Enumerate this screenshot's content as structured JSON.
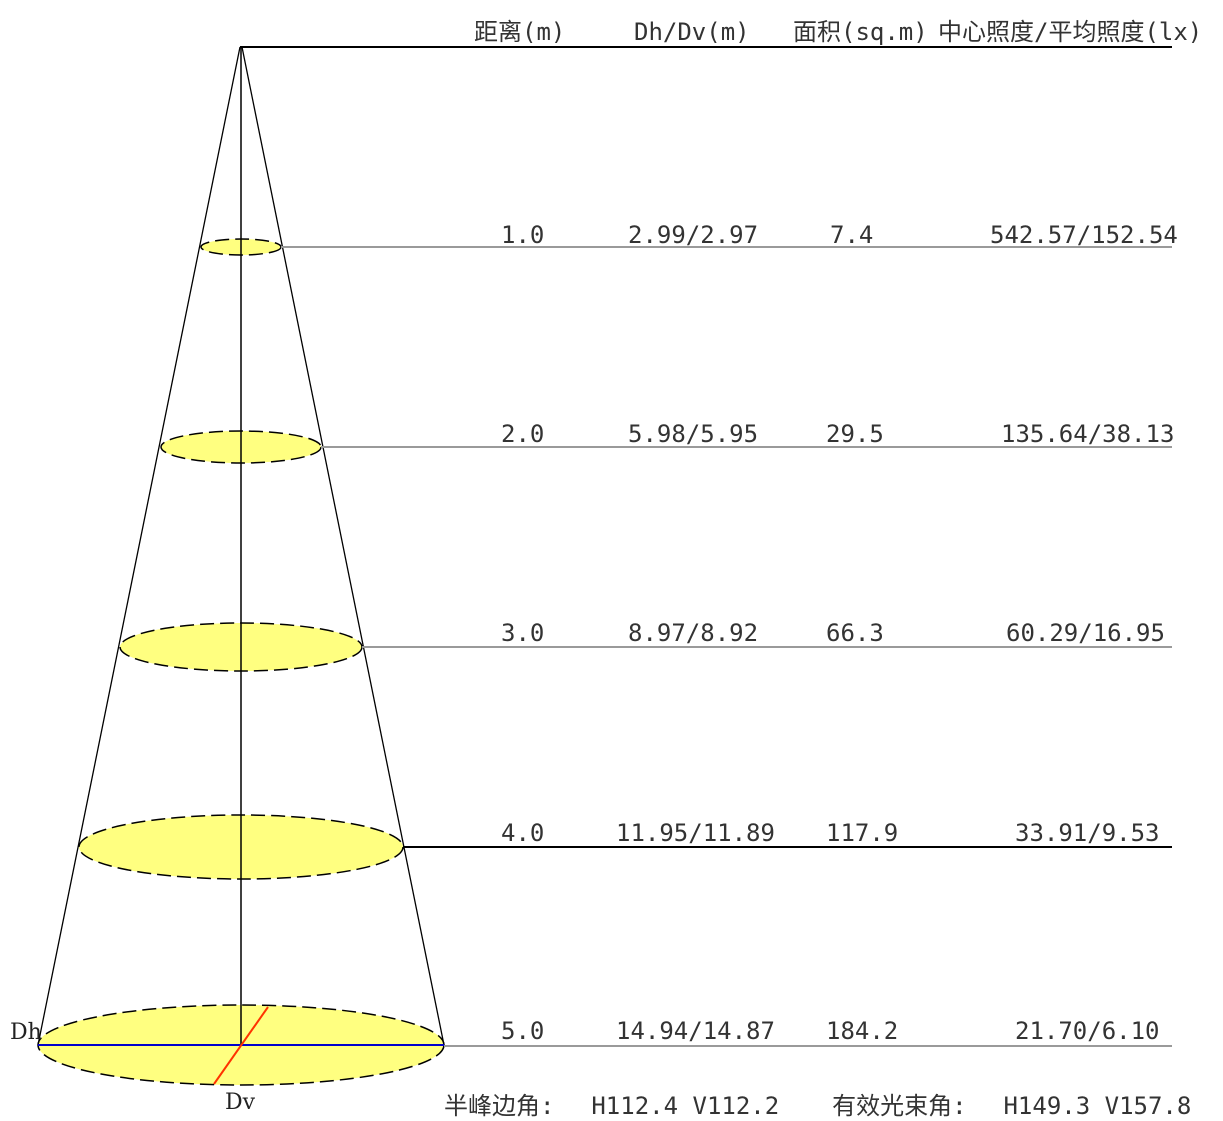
{
  "headers": {
    "distance": "距离(m)",
    "diameter": "Dh/Dv(m)",
    "area": "面积(sq.m)",
    "illuminance": "中心照度/平均照度(lx)"
  },
  "rows": [
    {
      "distance": "1.0",
      "diameter": "2.99/2.97",
      "area": "7.4",
      "illuminance": "542.57/152.54"
    },
    {
      "distance": "2.0",
      "diameter": "5.98/5.95",
      "area": "29.5",
      "illuminance": "135.64/38.13"
    },
    {
      "distance": "3.0",
      "diameter": "8.97/8.92",
      "area": "66.3",
      "illuminance": "60.29/16.95"
    },
    {
      "distance": "4.0",
      "diameter": "11.95/11.89",
      "area": "117.9",
      "illuminance": "33.91/9.53"
    },
    {
      "distance": "5.0",
      "diameter": "14.94/14.87",
      "area": "184.2",
      "illuminance": "21.70/6.10"
    }
  ],
  "labels": {
    "dh": "Dh",
    "dv": "Dv"
  },
  "footer": {
    "half_peak_label": "半峰边角:",
    "half_peak_value": "H112.4 V112.2",
    "beam_label": "有效光束角:",
    "beam_value": "H149.3 V157.8"
  },
  "colors": {
    "ellipse_fill": "#ffff80",
    "line_gray": "#9a9a9a",
    "line_black": "#000000",
    "dh_line": "#0000cc",
    "dv_line": "#ff3300"
  }
}
